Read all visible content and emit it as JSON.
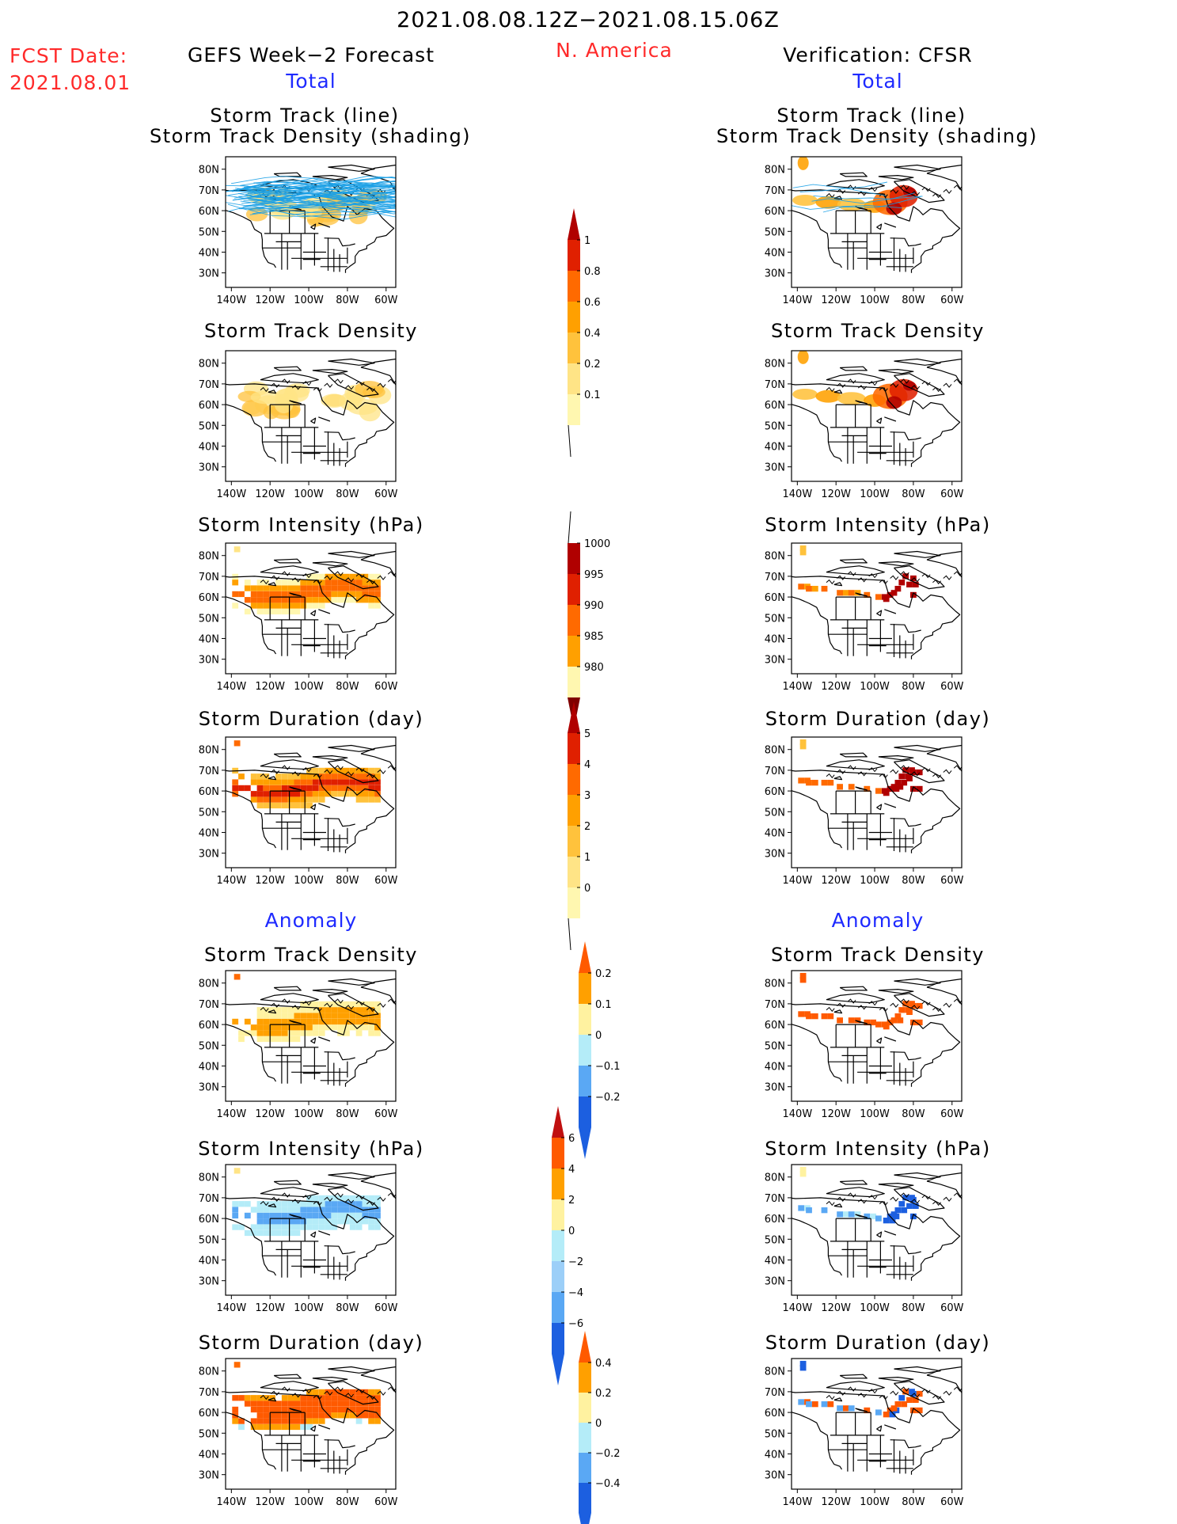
{
  "header": {
    "date_range": "2021.08.08.12Z−2021.08.15.06Z",
    "fcst_date_label": "FCST Date:",
    "fcst_date_value": "2021.08.01",
    "left_title": "GEFS Week−2 Forecast",
    "region": "N. America",
    "right_title": "Verification: CFSR",
    "total_label": "Total",
    "anomaly_label": "Anomaly"
  },
  "panel_titles": {
    "track_line_1": "Storm Track (line)",
    "track_line_2": "Storm Track Density (shading)",
    "density": "Storm Track Density",
    "intensity": "Storm Intensity (hPa)",
    "duration": "Storm Duration (day)"
  },
  "map_axes": {
    "x_ticks": [
      "140W",
      "120W",
      "100W",
      "80W",
      "60W"
    ],
    "y_ticks": [
      "80N",
      "70N",
      "60N",
      "50N",
      "40N",
      "30N"
    ]
  },
  "colors": {
    "title_red": "#ff2a2a",
    "title_blue": "#1e2aff",
    "track_line": "#1ba0e6",
    "density_scale": [
      "#fff7b0",
      "#ffe486",
      "#ffc23c",
      "#ffa000",
      "#ff6a00",
      "#e02000",
      "#b00000"
    ],
    "intensity_scale": [
      "#fff7b0",
      "#ffa000",
      "#ff6a00",
      "#e02000",
      "#b00000"
    ],
    "duration_scale": [
      "#fff7b0",
      "#ffe486",
      "#ffc23c",
      "#ffa000",
      "#ff6a00",
      "#e02000",
      "#b00000"
    ],
    "anomaly_scale": [
      "#1c5fe0",
      "#5aa8f4",
      "#b4ecf8",
      "#fff2a0",
      "#ffa000",
      "#ff5a00"
    ]
  },
  "chart_data": {
    "type": "heatmap",
    "colorbars": [
      {
        "name": "total_density",
        "labels": [
          "1",
          "0.8",
          "0.6",
          "0.4",
          "0.2",
          "0.1"
        ]
      },
      {
        "name": "total_intensity",
        "labels": [
          "1000",
          "995",
          "990",
          "985",
          "980"
        ]
      },
      {
        "name": "total_duration",
        "labels": [
          "5",
          "4",
          "3",
          "2",
          "1",
          "0"
        ]
      },
      {
        "name": "anomaly_density",
        "labels": [
          "0.2",
          "0.1",
          "0",
          "−0.1",
          "−0.2"
        ]
      },
      {
        "name": "anomaly_intensity",
        "labels": [
          "6",
          "4",
          "2",
          "0",
          "−2",
          "−4",
          "−6"
        ]
      },
      {
        "name": "anomaly_duration",
        "labels": [
          "0.4",
          "0.2",
          "0",
          "−0.2",
          "−0.4"
        ]
      }
    ],
    "panels": [
      {
        "column": "GEFS Week-2 Forecast",
        "variable": "Storm Track + Density",
        "region_focus": "55N-75N, 140W-60W"
      },
      {
        "column": "GEFS Week-2 Forecast",
        "variable": "Storm Track Density",
        "peak": 0.4
      },
      {
        "column": "GEFS Week-2 Forecast",
        "variable": "Storm Intensity (hPa)",
        "min_range": "990-995"
      },
      {
        "column": "GEFS Week-2 Forecast",
        "variable": "Storm Duration (day)",
        "max_range": "4-5"
      },
      {
        "column": "GEFS Week-2 Forecast",
        "variable": "Anomaly Storm Track Density",
        "range": "0 to 0.2"
      },
      {
        "column": "GEFS Week-2 Forecast",
        "variable": "Anomaly Storm Intensity (hPa)",
        "range": "-4 to 0"
      },
      {
        "column": "GEFS Week-2 Forecast",
        "variable": "Anomaly Storm Duration (day)",
        "range": "0.2 to 0.4"
      },
      {
        "column": "Verification: CFSR",
        "variable": "Storm Track + Density",
        "peak": 1.0
      },
      {
        "column": "Verification: CFSR",
        "variable": "Storm Track Density",
        "peak": 1.0
      },
      {
        "column": "Verification: CFSR",
        "variable": "Storm Intensity (hPa)",
        "min_range": "980-985"
      },
      {
        "column": "Verification: CFSR",
        "variable": "Storm Duration (day)",
        "max_range": "above 5"
      },
      {
        "column": "Verification: CFSR",
        "variable": "Anomaly Storm Track Density",
        "range": "0.1 to above 0.2"
      },
      {
        "column": "Verification: CFSR",
        "variable": "Anomaly Storm Intensity (hPa)",
        "range": "below -6 to 2"
      },
      {
        "column": "Verification: CFSR",
        "variable": "Anomaly Storm Duration (day)",
        "range": "-0.4 to 0.4"
      }
    ]
  }
}
